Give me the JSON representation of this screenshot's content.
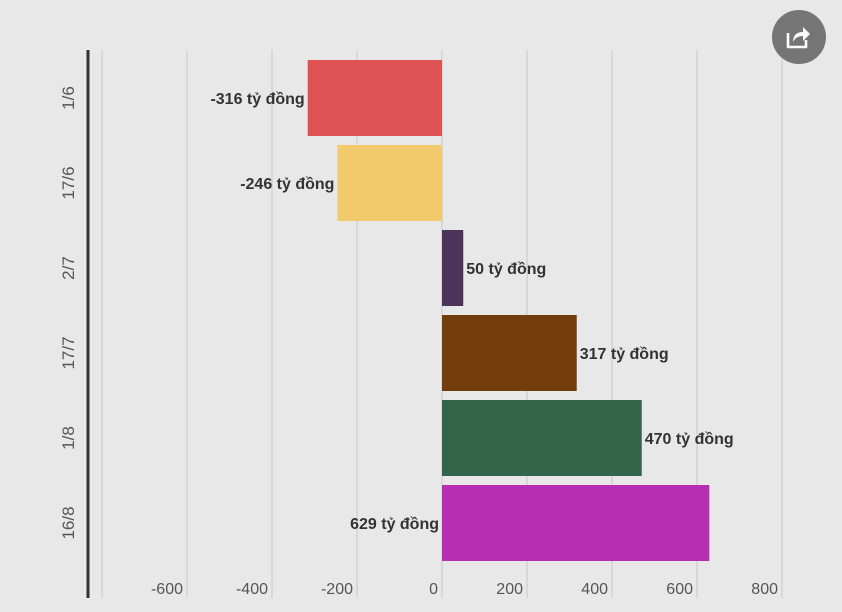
{
  "chart_data": {
    "type": "bar",
    "orientation": "horizontal",
    "categories": [
      "1/6",
      "17/6",
      "2/7",
      "17/7",
      "1/8",
      "16/8"
    ],
    "values": [
      -316,
      -246,
      50,
      317,
      470,
      629
    ],
    "labels": [
      "-316 tỷ đồng",
      "-246 tỷ đồng",
      "50 tỷ đồng",
      "317 tỷ đồng",
      "470 tỷ đồng",
      "629 tỷ đồng"
    ],
    "colors": [
      "#de5254",
      "#f2ca6b",
      "#4b335a",
      "#743d0e",
      "#32654a",
      "#b72eb3"
    ],
    "xlim": [
      -800,
      800
    ],
    "xticks": [
      -600,
      -400,
      -200,
      0,
      200,
      400,
      600,
      800
    ],
    "xtick_labels": [
      "-600",
      "-400",
      "-200",
      "0",
      "200",
      "400",
      "600",
      "800"
    ],
    "grid": true,
    "title": "",
    "xlabel": "",
    "ylabel": ""
  },
  "share": {
    "icon": "share-icon"
  }
}
